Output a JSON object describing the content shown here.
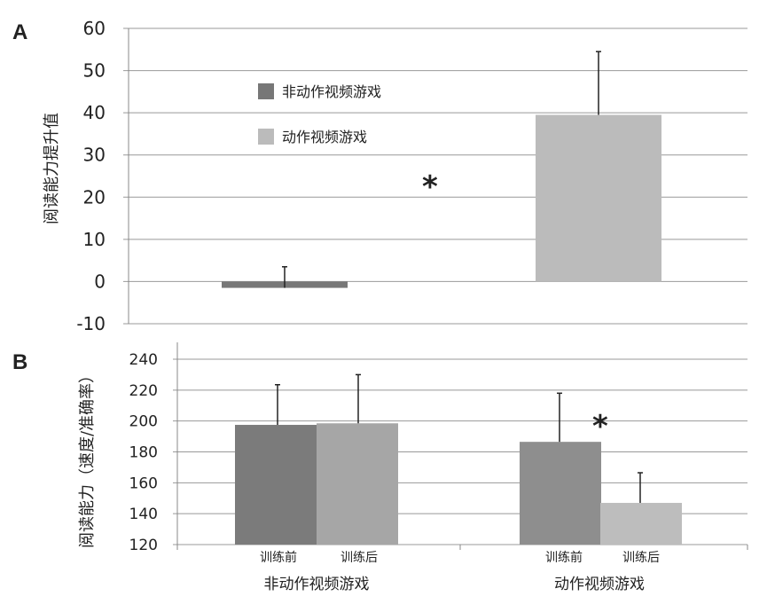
{
  "chart_data": [
    {
      "panel": "A",
      "type": "bar",
      "ylabel": "阅读能力提升值",
      "ylim": [
        -10,
        60
      ],
      "yticks": [
        60,
        50,
        40,
        30,
        20,
        10,
        0,
        -10
      ],
      "grid": true,
      "legend_position": "center",
      "series": [
        {
          "name": "非动作视频游戏",
          "values": [
            -1.5
          ],
          "error_upper": [
            3.5
          ],
          "color": "#777777"
        },
        {
          "name": "动作视频游戏",
          "values": [
            39.5
          ],
          "error_upper": [
            54.5
          ],
          "color": "#bbbbbb"
        }
      ],
      "annotation": "*"
    },
    {
      "panel": "B",
      "type": "bar",
      "ylabel": "阅读能力（速度/准确率）",
      "ylim": [
        120,
        240
      ],
      "yticks": [
        240,
        220,
        200,
        180,
        160,
        140,
        120
      ],
      "grid": true,
      "groups": [
        "非动作视频游戏",
        "动作视频游戏"
      ],
      "categories": [
        "训练前",
        "训练后",
        "训练前",
        "训练后"
      ],
      "values": [
        197.5,
        198.5,
        186.5,
        147
      ],
      "error_upper": [
        223.5,
        230,
        218,
        166.5
      ],
      "colors": [
        "#7b7b7b",
        "#a6a6a6",
        "#8e8e8e",
        "#bdbdbd"
      ],
      "annotation": "*"
    }
  ]
}
